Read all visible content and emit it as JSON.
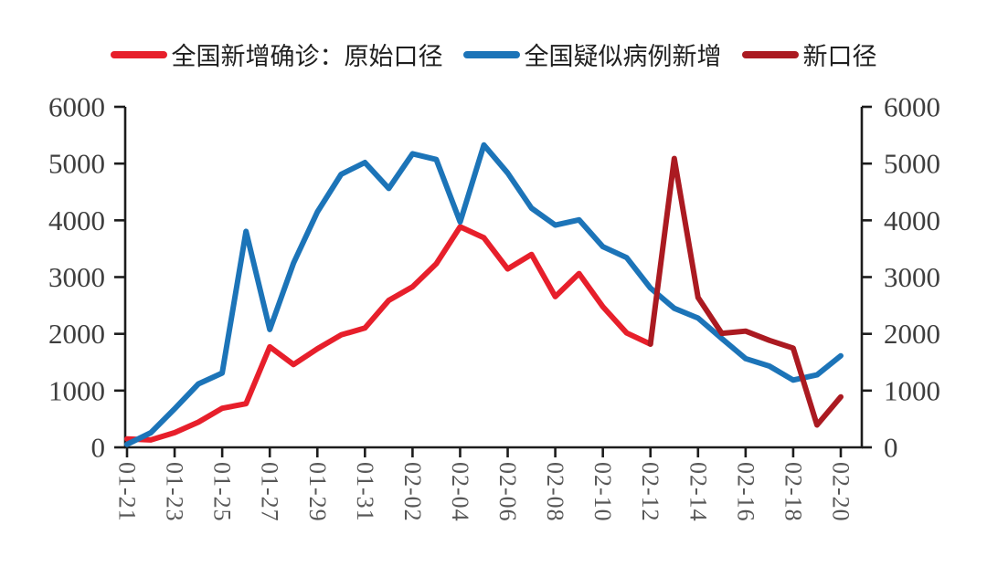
{
  "legend": {
    "items": [
      {
        "label": "全国新增确诊：原始口径",
        "color": "#e71f2b"
      },
      {
        "label": "全国疑似病例新增",
        "color": "#1c74b8"
      },
      {
        "label": "新口径",
        "color": "#ab1a21"
      }
    ]
  },
  "chart_data": {
    "type": "line",
    "title": "",
    "xlabel": "",
    "ylabel": "",
    "x": [
      "01-21",
      "01-22",
      "01-23",
      "01-24",
      "01-25",
      "01-26",
      "01-27",
      "01-28",
      "01-29",
      "01-30",
      "01-31",
      "02-01",
      "02-02",
      "02-03",
      "02-04",
      "02-05",
      "02-06",
      "02-07",
      "02-08",
      "02-09",
      "02-10",
      "02-11",
      "02-12",
      "02-13",
      "02-14",
      "02-15",
      "02-16",
      "02-17",
      "02-18",
      "02-19",
      "02-20"
    ],
    "x_tick_step": 2,
    "x_tick_labels": [
      "01-21",
      "01-23",
      "01-25",
      "01-27",
      "01-29",
      "01-31",
      "02-02",
      "02-04",
      "02-06",
      "02-08",
      "02-10",
      "02-12",
      "02-14",
      "02-16",
      "02-18",
      "02-20"
    ],
    "ylim": [
      0,
      6000
    ],
    "yticks": [
      0,
      1000,
      2000,
      3000,
      4000,
      5000,
      6000
    ],
    "dual_y_axis": true,
    "grid": false,
    "legend_position": "top",
    "series": [
      {
        "name": "全国新增确诊：原始口径",
        "color": "#e71f2b",
        "values": [
          149,
          131,
          259,
          444,
          688,
          769,
          1771,
          1459,
          1737,
          1982,
          2102,
          2590,
          2829,
          3235,
          3887,
          3694,
          3143,
          3399,
          2656,
          3062,
          2478,
          2015,
          1820,
          null,
          null,
          null,
          null,
          null,
          null,
          null,
          null
        ]
      },
      {
        "name": "全国疑似病例新增",
        "color": "#1c74b8",
        "values": [
          53,
          257,
          680,
          1118,
          1309,
          3806,
          2077,
          3248,
          4148,
          4812,
          5019,
          4562,
          5173,
          5072,
          3971,
          5328,
          4833,
          4214,
          3916,
          4008,
          3536,
          3342,
          2807,
          2450,
          2277,
          1918,
          1563,
          1432,
          1185,
          1277,
          1614
        ]
      },
      {
        "name": "新口径",
        "color": "#ab1a21",
        "values": [
          null,
          null,
          null,
          null,
          null,
          null,
          null,
          null,
          null,
          null,
          null,
          null,
          null,
          null,
          null,
          null,
          null,
          null,
          null,
          null,
          null,
          null,
          1820,
          5090,
          2641,
          2009,
          2048,
          1886,
          1749,
          394,
          889
        ]
      }
    ],
    "axis_color": "#1c1c1c",
    "y_label_color": "#3e3e3e",
    "x_label_color": "#575757"
  }
}
